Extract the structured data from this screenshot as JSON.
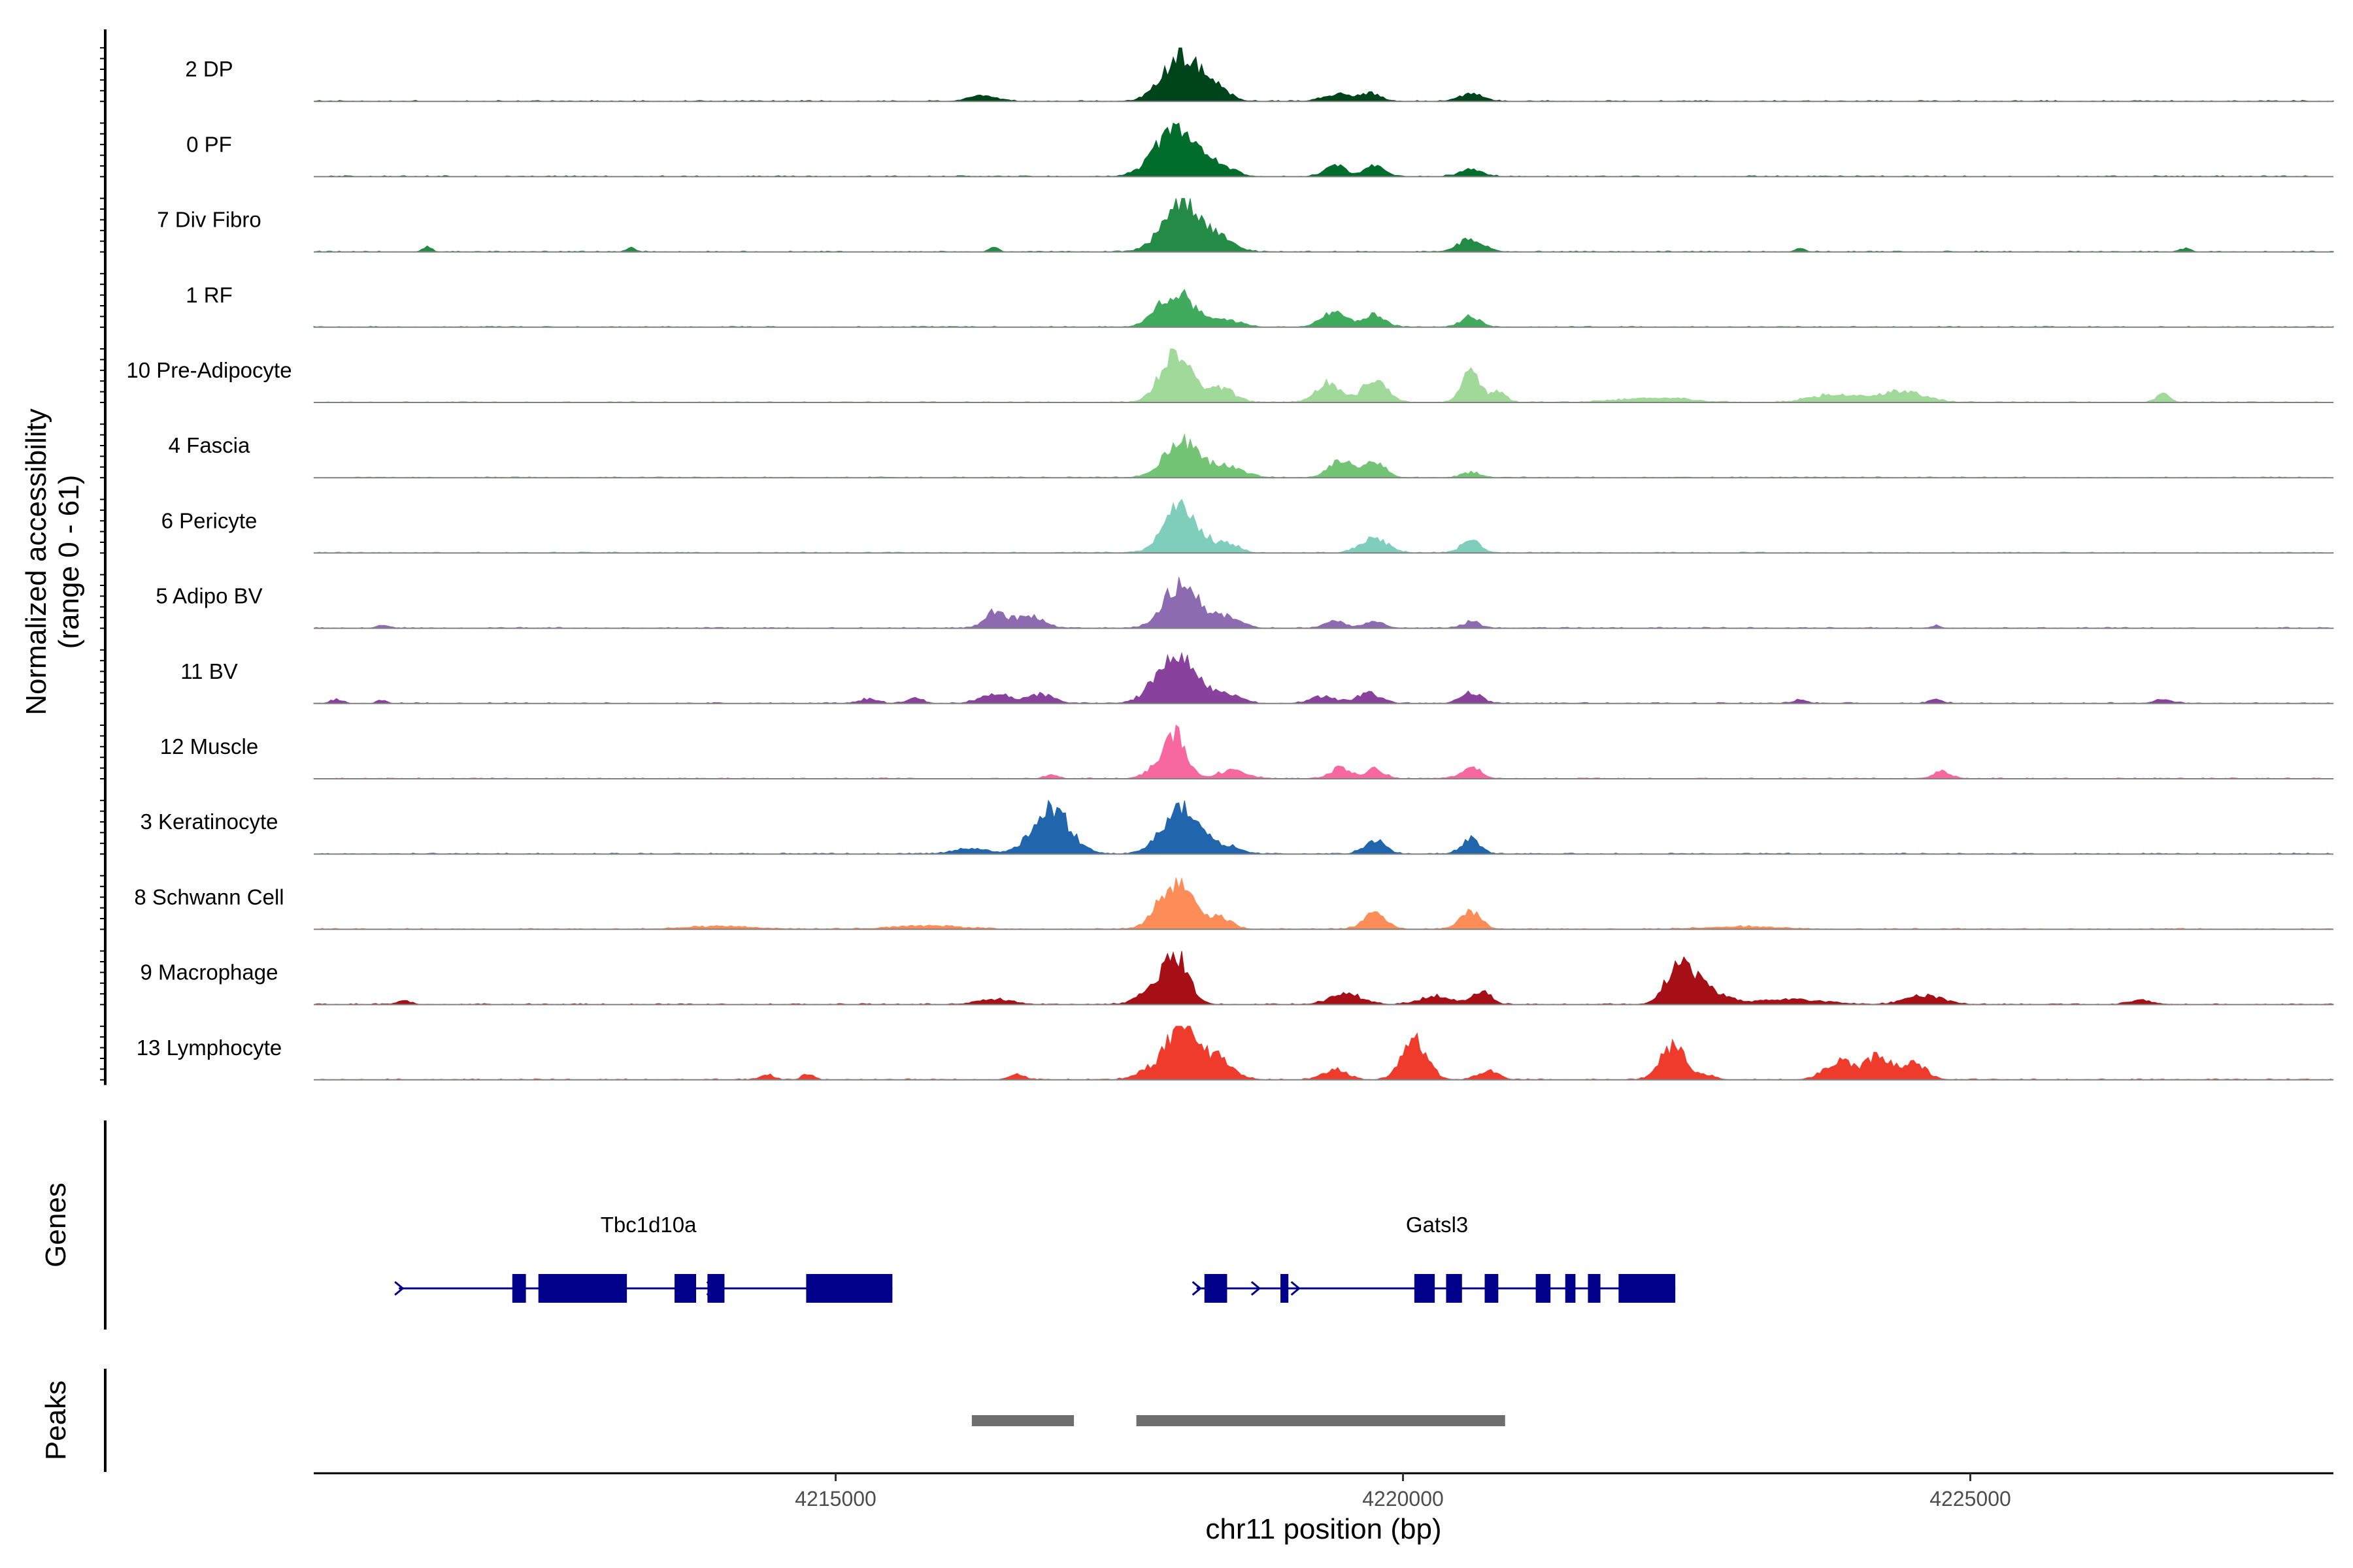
{
  "chart_data": {
    "type": "area",
    "title": "",
    "xlabel": "chr11 position (bp)",
    "ylabel_line1": "Normalized accessibility",
    "ylabel_line2": "(range 0 - 61)",
    "ylim": [
      0,
      61
    ],
    "xlim": [
      4210400,
      4228200
    ],
    "xticks": [
      4215000,
      4220000,
      4225000
    ],
    "xtick_labels": [
      "4215000",
      "4220000",
      "4225000"
    ],
    "genes_label": "Genes",
    "peaks_label": "Peaks",
    "series": [
      {
        "name": "2 DP",
        "color": "#00441b",
        "peaks": [
          [
            4216300,
            6,
            120
          ],
          [
            4218050,
            52,
            160
          ],
          [
            4218350,
            12,
            120
          ],
          [
            4219400,
            8,
            110
          ],
          [
            4219700,
            9,
            100
          ],
          [
            4220600,
            8,
            110
          ]
        ]
      },
      {
        "name": "0 PF",
        "color": "#006d2c",
        "peaks": [
          [
            4218000,
            55,
            180
          ],
          [
            4218400,
            10,
            120
          ],
          [
            4219400,
            13,
            90
          ],
          [
            4219750,
            12,
            90
          ],
          [
            4220600,
            8,
            100
          ]
        ]
      },
      {
        "name": "7 Div Fibro",
        "color": "#238b45",
        "peaks": [
          [
            4218050,
            58,
            160
          ],
          [
            4218400,
            15,
            120
          ],
          [
            4220600,
            15,
            110
          ],
          [
            4211400,
            6,
            40
          ],
          [
            4213200,
            5,
            40
          ],
          [
            4216400,
            5,
            40
          ],
          [
            4223500,
            4,
            40
          ],
          [
            4226900,
            4,
            40
          ]
        ]
      },
      {
        "name": "1 RF",
        "color": "#41ab5d",
        "peaks": [
          [
            4218000,
            40,
            150
          ],
          [
            4218450,
            8,
            120
          ],
          [
            4219400,
            18,
            110
          ],
          [
            4219750,
            14,
            90
          ],
          [
            4220600,
            12,
            80
          ]
        ]
      },
      {
        "name": "10 Pre-Adipocyte",
        "color": "#a1d99b",
        "peaks": [
          [
            4218000,
            60,
            130
          ],
          [
            4218400,
            16,
            110
          ],
          [
            4219350,
            22,
            110
          ],
          [
            4219750,
            28,
            100
          ],
          [
            4220600,
            36,
            80
          ],
          [
            4220850,
            12,
            60
          ],
          [
            4222200,
            5,
            300
          ],
          [
            4223800,
            9,
            200
          ],
          [
            4224400,
            12,
            200
          ],
          [
            4226700,
            9,
            60
          ]
        ]
      },
      {
        "name": "4 Fascia",
        "color": "#74c476",
        "peaks": [
          [
            4218050,
            42,
            150
          ],
          [
            4218450,
            12,
            150
          ],
          [
            4219450,
            20,
            100
          ],
          [
            4219750,
            18,
            90
          ],
          [
            4220600,
            6,
            80
          ]
        ]
      },
      {
        "name": "6 Pericyte",
        "color": "#7fcdbb",
        "peaks": [
          [
            4218050,
            52,
            150
          ],
          [
            4218450,
            10,
            100
          ],
          [
            4219750,
            16,
            120
          ],
          [
            4220600,
            13,
            90
          ]
        ]
      },
      {
        "name": "5 Adipo BV",
        "color": "#8c6bb1",
        "peaks": [
          [
            4216400,
            18,
            90
          ],
          [
            4216700,
            14,
            120
          ],
          [
            4218050,
            52,
            150
          ],
          [
            4218450,
            12,
            120
          ],
          [
            4219400,
            8,
            90
          ],
          [
            4219750,
            7,
            90
          ],
          [
            4220600,
            7,
            80
          ],
          [
            4211000,
            3,
            50
          ],
          [
            4224700,
            3,
            40
          ]
        ]
      },
      {
        "name": "11 BV",
        "color": "#88419d",
        "peaks": [
          [
            4216400,
            12,
            120
          ],
          [
            4216800,
            10,
            120
          ],
          [
            4218000,
            55,
            170
          ],
          [
            4218450,
            10,
            120
          ],
          [
            4219300,
            8,
            110
          ],
          [
            4219700,
            12,
            100
          ],
          [
            4220600,
            12,
            90
          ],
          [
            4210600,
            4,
            50
          ],
          [
            4211000,
            4,
            40
          ],
          [
            4215300,
            5,
            80
          ],
          [
            4215700,
            6,
            70
          ],
          [
            4223500,
            4,
            60
          ],
          [
            4224700,
            4,
            60
          ],
          [
            4226700,
            4,
            80
          ]
        ]
      },
      {
        "name": "12 Muscle",
        "color": "#f768a1",
        "peaks": [
          [
            4218000,
            52,
            90
          ],
          [
            4218500,
            10,
            120
          ],
          [
            4219450,
            12,
            90
          ],
          [
            4219750,
            11,
            80
          ],
          [
            4220600,
            12,
            90
          ],
          [
            4217800,
            10,
            90
          ],
          [
            4224750,
            8,
            80
          ],
          [
            4216900,
            4,
            60
          ]
        ]
      },
      {
        "name": "3 Keratinocyte",
        "color": "#2166ac",
        "peaks": [
          [
            4216900,
            52,
            160
          ],
          [
            4218050,
            55,
            160
          ],
          [
            4219750,
            16,
            90
          ],
          [
            4220600,
            18,
            80
          ],
          [
            4216200,
            6,
            150
          ],
          [
            4218450,
            8,
            120
          ]
        ]
      },
      {
        "name": "8 Schwann Cell",
        "color": "#fc8d59",
        "peaks": [
          [
            4218000,
            52,
            150
          ],
          [
            4218400,
            12,
            100
          ],
          [
            4219750,
            18,
            100
          ],
          [
            4220600,
            20,
            90
          ],
          [
            4215800,
            4,
            300
          ],
          [
            4214000,
            3,
            300
          ],
          [
            4223000,
            3,
            300
          ]
        ]
      },
      {
        "name": "9 Macrophage",
        "color": "#a50f15",
        "peaks": [
          [
            4217800,
            15,
            130
          ],
          [
            4218000,
            52,
            110
          ],
          [
            4222450,
            48,
            120
          ],
          [
            4222700,
            14,
            150
          ],
          [
            4219500,
            12,
            140
          ],
          [
            4220300,
            10,
            140
          ],
          [
            4220700,
            14,
            80
          ],
          [
            4223400,
            6,
            300
          ],
          [
            4224600,
            10,
            160
          ],
          [
            4211200,
            4,
            60
          ],
          [
            4216400,
            6,
            150
          ],
          [
            4226500,
            5,
            100
          ]
        ]
      },
      {
        "name": "13 Lymphocyte",
        "color": "#ef3b2c",
        "peaks": [
          [
            4218050,
            60,
            120
          ],
          [
            4218350,
            25,
            140
          ],
          [
            4220100,
            45,
            110
          ],
          [
            4219400,
            12,
            100
          ],
          [
            4220750,
            10,
            90
          ],
          [
            4222380,
            38,
            110
          ],
          [
            4223850,
            22,
            130
          ],
          [
            4224200,
            26,
            110
          ],
          [
            4224500,
            18,
            110
          ],
          [
            4214400,
            5,
            60
          ],
          [
            4214750,
            6,
            50
          ],
          [
            4216600,
            6,
            60
          ],
          [
            4217800,
            12,
            130
          ],
          [
            4222700,
            5,
            60
          ]
        ]
      }
    ],
    "genes": [
      {
        "name": "Tbc1d10a",
        "start": 4211150,
        "end": 4215500,
        "label_pos": 4213350,
        "arrows": [
          4211150,
          4213900,
          4214900
        ],
        "exons": [
          [
            4212150,
            4212270
          ],
          [
            4212380,
            4213160
          ],
          [
            4213580,
            4213770
          ],
          [
            4213870,
            4214020
          ],
          [
            4214740,
            4215500
          ]
        ]
      },
      {
        "name": "Gatsl3",
        "start": 4218180,
        "end": 4222400,
        "label_pos": 4220300,
        "arrows": [
          4218180,
          4218700,
          4219050
        ],
        "exons": [
          [
            4218250,
            4218450
          ],
          [
            4218920,
            4218990
          ],
          [
            4220100,
            4220280
          ],
          [
            4220380,
            4220520
          ],
          [
            4220720,
            4220840
          ],
          [
            4221170,
            4221300
          ],
          [
            4221430,
            4221520
          ],
          [
            4221630,
            4221740
          ],
          [
            4221900,
            4222400
          ]
        ]
      }
    ],
    "peaks_regions": [
      [
        4216200,
        4217100
      ],
      [
        4217650,
        4220900
      ]
    ]
  }
}
